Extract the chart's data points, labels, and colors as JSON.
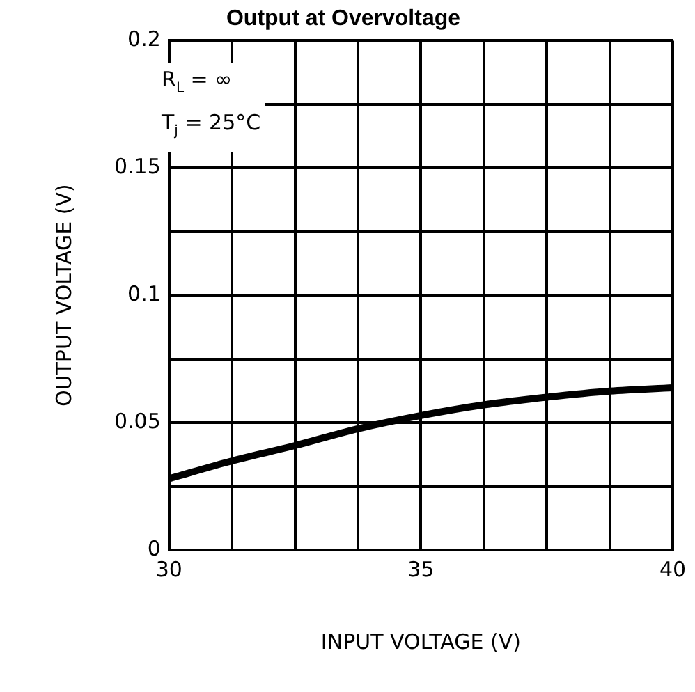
{
  "chart_data": {
    "type": "line",
    "title": "Output at Overvoltage",
    "xlabel": "INPUT VOLTAGE (V)",
    "ylabel": "OUTPUT VOLTAGE (V)",
    "annotations": [
      "R$_{L}$ = ∞",
      "T$_{j}$ = 25°C"
    ],
    "x": [
      30,
      31.25,
      32.5,
      33.75,
      35,
      36.25,
      37.5,
      38.75,
      40
    ],
    "series": [
      {
        "color": "#000000",
        "values": [
          0.028,
          0.035,
          0.041,
          0.0476,
          0.0528,
          0.057,
          0.06,
          0.0624,
          0.0637
        ]
      }
    ],
    "xlim": [
      30,
      40
    ],
    "xticks": [
      30,
      {
        "value": 31.25,
        "label": null
      },
      {
        "value": 32.5,
        "label": null
      },
      {
        "value": 33.75,
        "label": null
      },
      35,
      {
        "value": 36.25,
        "label": null
      },
      {
        "value": 37.5,
        "label": null
      },
      {
        "value": 38.75,
        "label": null
      },
      40
    ],
    "ylim": [
      0,
      0.2
    ],
    "yticks": [
      0,
      {
        "value": 0.025,
        "label": null
      },
      0.05,
      {
        "value": 0.075,
        "label": null
      },
      0.1,
      {
        "value": 0.125,
        "label": null
      },
      0.15,
      {
        "value": 0.175,
        "label": null
      },
      0.2
    ],
    "grid": true,
    "legend": false,
    "marker": "none",
    "line_style": "solid"
  }
}
